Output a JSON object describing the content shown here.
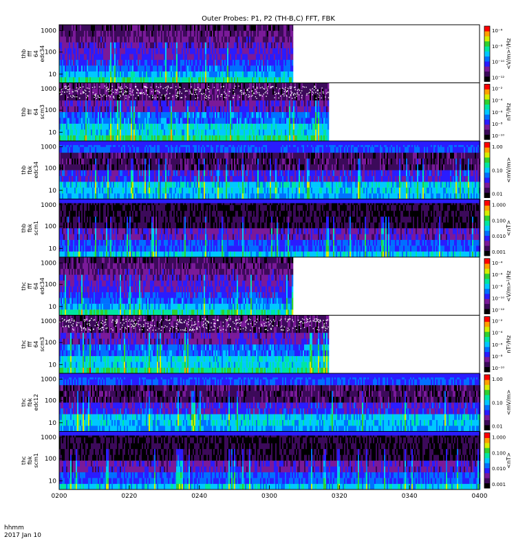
{
  "chart_data": {
    "type": "heatmap",
    "title": "Outer Probes: P1, P2 (TH-B,C) FFT, FBK",
    "time_axis": {
      "ticks": [
        "0200",
        "0220",
        "0240",
        "0300",
        "0320",
        "0340",
        "0400"
      ],
      "label_top": "hhmm",
      "label_bottom": "2017 Jan 10"
    },
    "colormap": [
      "#000000",
      "#3c0a5a",
      "#7a1a99",
      "#2a1cff",
      "#0070ff",
      "#00c8ff",
      "#00e6a0",
      "#30d030",
      "#d6ee00",
      "#ffa000",
      "#ff0000"
    ],
    "panels": [
      {
        "probe": "thb",
        "mode": "fff",
        "res": "64",
        "channel": "edc34",
        "ylabel_lines": [
          "thb",
          "fff",
          "64",
          "edc34"
        ],
        "y_ticks": [
          "1000",
          "100",
          "10"
        ],
        "cbar_ticks": [
          "10⁻⁶",
          "10⁻⁸",
          "10⁻¹⁰",
          "10⁻¹²"
        ],
        "cbar_label": "<V/m>²/Hz",
        "data_end_fraction": 0.555,
        "kind": "fff_e"
      },
      {
        "probe": "thb",
        "mode": "fff",
        "res": "64",
        "channel": "scm3",
        "ylabel_lines": [
          "thb",
          "fff",
          "64",
          "scm3"
        ],
        "y_ticks": [
          "1000",
          "100",
          "10"
        ],
        "cbar_ticks": [
          "10⁻²",
          "10⁻⁴",
          "10⁻⁶",
          "10⁻⁸",
          "10⁻¹⁰"
        ],
        "cbar_label": "nT²/Hz",
        "data_end_fraction": 0.64,
        "kind": "fff_b"
      },
      {
        "probe": "thb",
        "mode": "fbk",
        "channel": "edc34",
        "ylabel_lines": [
          "thb",
          "fbk",
          "edc34"
        ],
        "y_ticks": [
          "1000",
          "100",
          "10"
        ],
        "cbar_ticks": [
          "1.00",
          "0.10",
          "0.01"
        ],
        "cbar_label": "<mV/m>",
        "data_end_fraction": 1.0,
        "kind": "fbk_e"
      },
      {
        "probe": "thb",
        "mode": "fbk",
        "channel": "scm1",
        "ylabel_lines": [
          "thb",
          "fbk",
          "scm1"
        ],
        "y_ticks": [
          "1000",
          "100",
          "10"
        ],
        "cbar_ticks": [
          "1.000",
          "0.100",
          "0.010",
          "0.001"
        ],
        "cbar_label": "<nT>",
        "data_end_fraction": 1.0,
        "kind": "fbk_b"
      },
      {
        "probe": "thc",
        "mode": "fff",
        "res": "64",
        "channel": "edc34",
        "ylabel_lines": [
          "thc",
          "fff",
          "64",
          "edc34"
        ],
        "y_ticks": [
          "1000",
          "100",
          "10"
        ],
        "cbar_ticks": [
          "10⁻⁴",
          "10⁻⁶",
          "10⁻⁸",
          "10⁻¹⁰",
          "10⁻¹²"
        ],
        "cbar_label": "<V/m>²/Hz",
        "data_end_fraction": 0.555,
        "kind": "fff_e2"
      },
      {
        "probe": "thc",
        "mode": "fff",
        "res": "64",
        "channel": "scm3",
        "ylabel_lines": [
          "thc",
          "fff",
          "64",
          "scm3"
        ],
        "y_ticks": [
          "1000",
          "100",
          "10"
        ],
        "cbar_ticks": [
          "10⁻²",
          "10⁻⁴",
          "10⁻⁶",
          "10⁻⁸",
          "10⁻¹⁰"
        ],
        "cbar_label": "nT²/Hz",
        "data_end_fraction": 0.64,
        "kind": "fff_b"
      },
      {
        "probe": "thc",
        "mode": "fbk",
        "channel": "edc12",
        "ylabel_lines": [
          "thc",
          "fbk",
          "edc12"
        ],
        "y_ticks": [
          "1000",
          "100",
          "10"
        ],
        "cbar_ticks": [
          "1.00",
          "0.10",
          "0.01"
        ],
        "cbar_label": "<mV/m>",
        "data_end_fraction": 1.0,
        "kind": "fbk_e2"
      },
      {
        "probe": "thc",
        "mode": "fbk",
        "channel": "scm1",
        "ylabel_lines": [
          "thc",
          "fbk",
          "scm1"
        ],
        "y_ticks": [
          "1000",
          "100",
          "10"
        ],
        "cbar_ticks": [
          "1.000",
          "0.100",
          "0.010",
          "0.001"
        ],
        "cbar_label": "<nT>",
        "data_end_fraction": 1.0,
        "kind": "fbk_b"
      }
    ]
  }
}
